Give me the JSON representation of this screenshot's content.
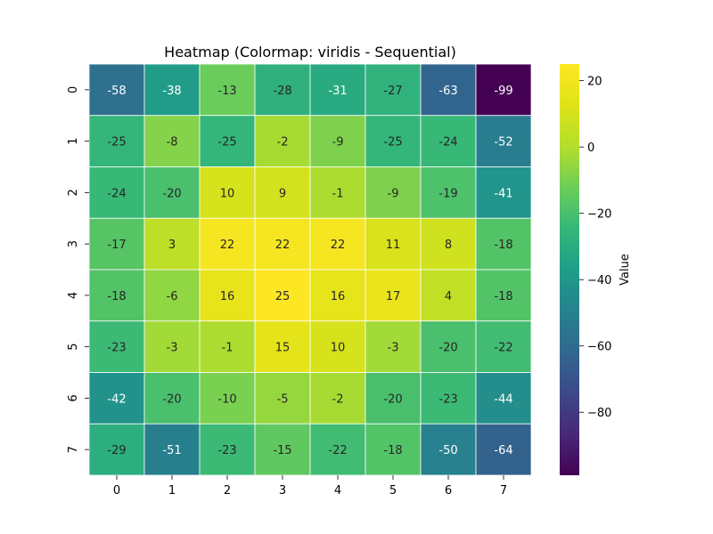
{
  "chart_data": {
    "type": "heatmap",
    "title": "Heatmap (Colormap: viridis - Sequential)",
    "colormap": "viridis",
    "x_labels": [
      "0",
      "1",
      "2",
      "3",
      "4",
      "5",
      "6",
      "7"
    ],
    "y_labels": [
      "0",
      "1",
      "2",
      "3",
      "4",
      "5",
      "6",
      "7"
    ],
    "values": [
      [
        -58,
        -38,
        -13,
        -28,
        -31,
        -27,
        -63,
        -99
      ],
      [
        -25,
        -8,
        -25,
        -2,
        -9,
        -25,
        -24,
        -52
      ],
      [
        -24,
        -20,
        10,
        9,
        -1,
        -9,
        -19,
        -41
      ],
      [
        -17,
        3,
        22,
        22,
        22,
        11,
        8,
        -18
      ],
      [
        -18,
        -6,
        16,
        25,
        16,
        17,
        4,
        -18
      ],
      [
        -23,
        -3,
        -1,
        15,
        10,
        -3,
        -20,
        -22
      ],
      [
        -42,
        -20,
        -10,
        -5,
        -2,
        -20,
        -23,
        -44
      ],
      [
        -29,
        -51,
        -23,
        -15,
        -22,
        -18,
        -50,
        -64
      ]
    ],
    "vmin": -99,
    "vmax": 25,
    "colorbar": {
      "label": "Value",
      "ticks": [
        20,
        0,
        -20,
        -40,
        -60,
        -80
      ],
      "tick_labels": [
        "20",
        "0",
        "−20",
        "−40",
        "−60",
        "−80"
      ]
    },
    "annotated": true,
    "cell_border_color": "#ffffff"
  }
}
